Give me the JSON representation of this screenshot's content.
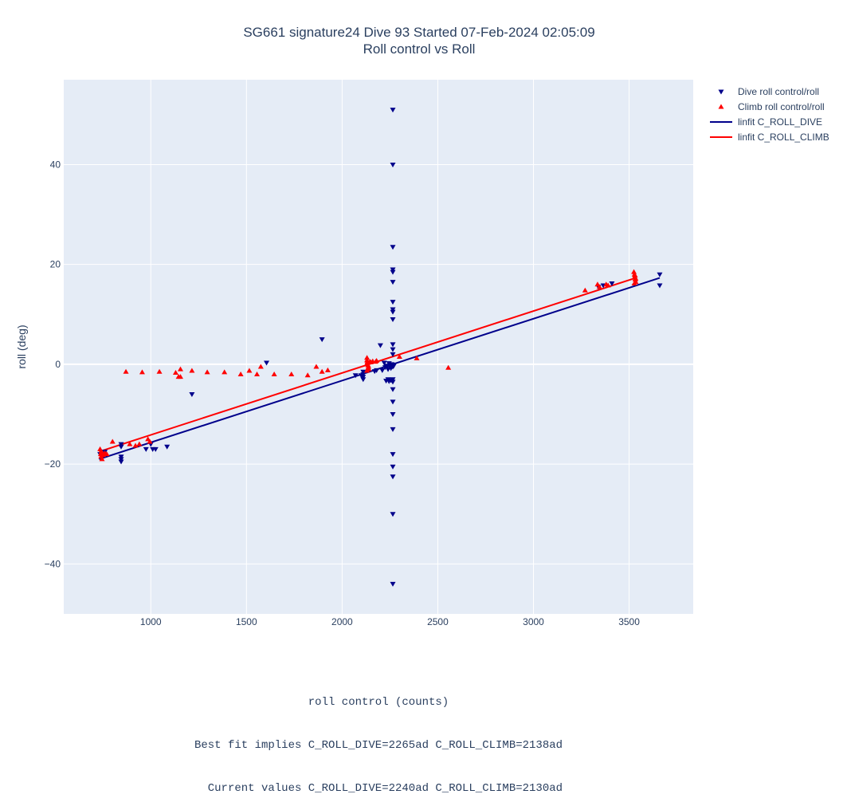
{
  "chart_data": {
    "type": "scatter",
    "title": "SG661 signature24 Dive 93 Started 07-Feb-2024 02:05:09",
    "subtitle": "Roll control vs Roll",
    "xlabel_lines": [
      "roll control (counts)",
      "Best fit implies C_ROLL_DIVE=2265ad C_ROLL_CLIMB=2138ad",
      "  Current values C_ROLL_DIVE=2240ad C_ROLL_CLIMB=2130ad"
    ],
    "ylabel": "roll (deg)",
    "xlim": [
      545,
      3835
    ],
    "ylim": [
      -50,
      57
    ],
    "x_ticks": [
      1000,
      1500,
      2000,
      2500,
      3000,
      3500
    ],
    "y_ticks": [
      -40,
      -20,
      0,
      20,
      40
    ],
    "grid": true,
    "legend_position": "top-right",
    "series": [
      {
        "name": "Dive roll control/roll",
        "kind": "markers",
        "marker": "triangle-down",
        "color": "#00008b",
        "points": [
          [
            2265,
            51
          ],
          [
            2265,
            40
          ],
          [
            2265,
            23.5
          ],
          [
            2265,
            19
          ],
          [
            2265,
            18.5
          ],
          [
            2265,
            16.5
          ],
          [
            2265,
            12.5
          ],
          [
            2265,
            11
          ],
          [
            2265,
            10.5
          ],
          [
            2265,
            9
          ],
          [
            2265,
            4
          ],
          [
            2265,
            3
          ],
          [
            2265,
            2
          ],
          [
            2265,
            -3
          ],
          [
            2265,
            -3.5
          ],
          [
            2265,
            -5
          ],
          [
            2265,
            -7.5
          ],
          [
            2265,
            -10
          ],
          [
            2265,
            -13
          ],
          [
            2265,
            -18
          ],
          [
            2265,
            -20.5
          ],
          [
            2265,
            -22.5
          ],
          [
            2265,
            -30
          ],
          [
            2265,
            -44
          ],
          [
            2265,
            -0.5
          ],
          [
            2260,
            0
          ],
          [
            2270,
            -0.3
          ],
          [
            2255,
            -0.8
          ],
          [
            2250,
            -0.2
          ],
          [
            2245,
            0.2
          ],
          [
            2240,
            -1
          ],
          [
            2235,
            -0.5
          ],
          [
            2230,
            -0.3
          ],
          [
            2225,
            -0.6
          ],
          [
            2220,
            0.3
          ],
          [
            2255,
            -3.2
          ],
          [
            2245,
            -3.4
          ],
          [
            2240,
            -3
          ],
          [
            2230,
            -3.3
          ],
          [
            2200,
            3.8
          ],
          [
            2210,
            -1.2
          ],
          [
            2180,
            -1.2
          ],
          [
            2170,
            -1.4
          ],
          [
            2110,
            -1.5
          ],
          [
            2110,
            -2
          ],
          [
            2110,
            -2.5
          ],
          [
            2110,
            -3
          ],
          [
            2100,
            -2.2
          ],
          [
            2070,
            -2.2
          ],
          [
            1895,
            5
          ],
          [
            1605,
            0.3
          ],
          [
            1215,
            -6
          ],
          [
            1085,
            -16.5
          ],
          [
            1025,
            -17
          ],
          [
            1010,
            -17
          ],
          [
            1000,
            -16
          ],
          [
            975,
            -17
          ],
          [
            845,
            -16
          ],
          [
            845,
            -16.5
          ],
          [
            845,
            -18.5
          ],
          [
            845,
            -19
          ],
          [
            845,
            -19.5
          ],
          [
            760,
            -17.5
          ],
          [
            745,
            -18.5
          ],
          [
            735,
            -18
          ],
          [
            3660,
            18
          ],
          [
            3660,
            15.8
          ],
          [
            3410,
            16.2
          ],
          [
            3365,
            15.8
          ],
          [
            3340,
            15.5
          ]
        ]
      },
      {
        "name": "Climb roll control/roll",
        "kind": "markers",
        "marker": "triangle-up",
        "color": "#ff0000",
        "points": [
          [
            735,
            -17
          ],
          [
            738,
            -18
          ],
          [
            740,
            -18.5
          ],
          [
            742,
            -17.5
          ],
          [
            745,
            -19
          ],
          [
            748,
            -17.8
          ],
          [
            750,
            -18.2
          ],
          [
            760,
            -17.8
          ],
          [
            770,
            -18
          ],
          [
            800,
            -15.5
          ],
          [
            890,
            -16
          ],
          [
            920,
            -16.3
          ],
          [
            940,
            -16
          ],
          [
            985,
            -15
          ],
          [
            995,
            -15.5
          ],
          [
            870,
            -1.5
          ],
          [
            955,
            -1.6
          ],
          [
            1045,
            -1.5
          ],
          [
            1130,
            -1.7
          ],
          [
            1145,
            -2.5
          ],
          [
            1155,
            -2.5
          ],
          [
            1155,
            -1
          ],
          [
            1215,
            -1.3
          ],
          [
            1295,
            -1.6
          ],
          [
            1385,
            -1.6
          ],
          [
            1470,
            -2
          ],
          [
            1515,
            -1.3
          ],
          [
            1555,
            -2
          ],
          [
            1575,
            -0.5
          ],
          [
            1645,
            -2
          ],
          [
            1735,
            -2
          ],
          [
            1820,
            -2.2
          ],
          [
            1865,
            -0.5
          ],
          [
            1895,
            -1.5
          ],
          [
            1925,
            -1.2
          ],
          [
            2130,
            1.3
          ],
          [
            2130,
            0.8
          ],
          [
            2132,
            0.5
          ],
          [
            2134,
            0.3
          ],
          [
            2136,
            -0.2
          ],
          [
            2138,
            -0.5
          ],
          [
            2140,
            -1
          ],
          [
            2130,
            -1.3
          ],
          [
            2128,
            0
          ],
          [
            2135,
            -0.8
          ],
          [
            2145,
            0.5
          ],
          [
            2150,
            0.4
          ],
          [
            2160,
            0.6
          ],
          [
            2175,
            0.5
          ],
          [
            2180,
            0.7
          ],
          [
            2300,
            1.5
          ],
          [
            2390,
            1.2
          ],
          [
            2555,
            -0.7
          ],
          [
            3270,
            14.8
          ],
          [
            3335,
            16
          ],
          [
            3345,
            15.5
          ],
          [
            3380,
            16
          ],
          [
            3390,
            15.8
          ],
          [
            3525,
            18.5
          ],
          [
            3528,
            18
          ],
          [
            3530,
            17.5
          ],
          [
            3532,
            17
          ],
          [
            3535,
            16.5
          ],
          [
            3527,
            16.2
          ],
          [
            3531,
            17.8
          ],
          [
            3534,
            17.2
          ]
        ]
      },
      {
        "name": "linfit C_ROLL_DIVE",
        "kind": "line",
        "color": "#00008b",
        "points": [
          [
            730,
            -19
          ],
          [
            3660,
            17.3
          ]
        ]
      },
      {
        "name": "linfit C_ROLL_CLIMB",
        "kind": "line",
        "color": "#ff0000",
        "points": [
          [
            730,
            -17.5
          ],
          [
            3535,
            17.3
          ]
        ]
      }
    ]
  }
}
